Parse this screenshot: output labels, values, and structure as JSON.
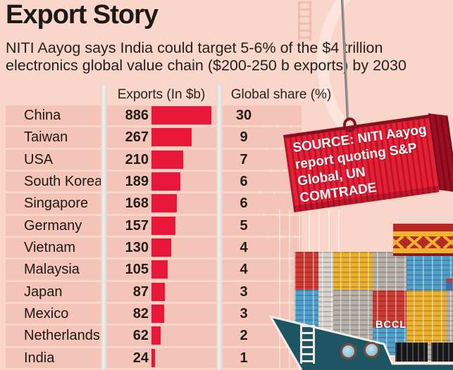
{
  "title": "Export Story",
  "subtitle": {
    "line1": "NITI Aayog says India could target 5-6% of the $4 trillion",
    "line2": "electronics global value chain ($200-250 b exports) by 2030"
  },
  "table": {
    "exports_header": "Exports (In $b)",
    "share_header": "Global share (%)",
    "rows": [
      {
        "country": "China",
        "exports": 886,
        "share": 30
      },
      {
        "country": "Taiwan",
        "exports": 267,
        "share": 9
      },
      {
        "country": "USA",
        "exports": 210,
        "share": 7
      },
      {
        "country": "South Korea",
        "exports": 189,
        "share": 6
      },
      {
        "country": "Singapore",
        "exports": 168,
        "share": 6
      },
      {
        "country": "Germany",
        "exports": 157,
        "share": 5
      },
      {
        "country": "Vietnam",
        "exports": 130,
        "share": 4
      },
      {
        "country": "Malaysia",
        "exports": 105,
        "share": 4
      },
      {
        "country": "Japan",
        "exports": 87,
        "share": 3
      },
      {
        "country": "Mexico",
        "exports": 82,
        "share": 3
      },
      {
        "country": "Netherlands",
        "exports": 62,
        "share": 2
      },
      {
        "country": "India",
        "exports": 24,
        "share": 1
      }
    ]
  },
  "source_box": {
    "line1": "SOURCE: NITI Aayog",
    "line2": "report quoting S&P",
    "line3": "Global, UN COMTRADE"
  },
  "credit": "BCCL",
  "chart_data": {
    "type": "bar",
    "title": "Export Story",
    "subtitle": "NITI Aayog says India could target 5-6% of the $4 trillion electronics global value chain ($200-250 b exports) by 2030",
    "categories": [
      "China",
      "Taiwan",
      "USA",
      "South Korea",
      "Singapore",
      "Germany",
      "Vietnam",
      "Malaysia",
      "Japan",
      "Mexico",
      "Netherlands",
      "India"
    ],
    "series": [
      {
        "name": "Exports (In $b)",
        "values": [
          886,
          267,
          210,
          189,
          168,
          157,
          130,
          105,
          87,
          82,
          62,
          24
        ]
      },
      {
        "name": "Global share (%)",
        "values": [
          30,
          9,
          7,
          6,
          6,
          5,
          4,
          4,
          3,
          3,
          2,
          1
        ]
      }
    ],
    "orientation": "horizontal",
    "grid": false,
    "legend_position": "none",
    "source": "SOURCE: NITI Aayog report quoting S&P Global, UN COMTRADE"
  },
  "colors": {
    "background": "#f9d5ca",
    "row_background": "#f5c4b9",
    "bar_red": "#e8173a",
    "container_red": "#d41b30",
    "hull_teal": "#1e5563",
    "crane_yellow": "#f1b22c",
    "text_dark": "#1d1916"
  }
}
